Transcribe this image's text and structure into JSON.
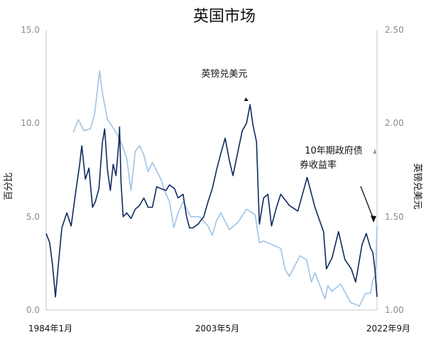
{
  "chart_data": {
    "type": "line",
    "title": "英国市场",
    "ylabel_left": "百分比",
    "ylabel_right": "英镑兑美元",
    "x_ticks": [
      "1984年1月",
      "2003年5月",
      "2022年9月"
    ],
    "x_range": [
      "1984-01",
      "2022-09"
    ],
    "y_left": {
      "range": [
        0,
        15
      ],
      "ticks": [
        "0.0",
        "5.0",
        "10.0",
        "15.0"
      ]
    },
    "y_right": {
      "range": [
        1.0,
        2.5
      ],
      "ticks": [
        "1.00",
        "1.50",
        "2.00",
        "2.50"
      ]
    },
    "annotations": [
      {
        "text": "英镑兑美元",
        "target_series": "gbpusd"
      },
      {
        "text": "10年期政府债",
        "target_series": "yield10y"
      },
      {
        "text": "券收益率",
        "target_series": "yield10y"
      }
    ],
    "series": [
      {
        "id": "gbpusd",
        "color": "#0d2a5e",
        "axis": "right",
        "points": [
          [
            "1984-01",
            1.41
          ],
          [
            "1984-06",
            1.36
          ],
          [
            "1984-10",
            1.24
          ],
          [
            "1985-02",
            1.07
          ],
          [
            "1985-06",
            1.24
          ],
          [
            "1985-11",
            1.44
          ],
          [
            "1986-06",
            1.52
          ],
          [
            "1986-12",
            1.45
          ],
          [
            "1987-06",
            1.62
          ],
          [
            "1987-12",
            1.78
          ],
          [
            "1988-03",
            1.88
          ],
          [
            "1988-08",
            1.7
          ],
          [
            "1989-01",
            1.76
          ],
          [
            "1989-06",
            1.55
          ],
          [
            "1989-10",
            1.58
          ],
          [
            "1990-03",
            1.65
          ],
          [
            "1990-08",
            1.9
          ],
          [
            "1990-11",
            1.97
          ],
          [
            "1991-03",
            1.75
          ],
          [
            "1991-07",
            1.64
          ],
          [
            "1991-11",
            1.78
          ],
          [
            "1992-03",
            1.72
          ],
          [
            "1992-07",
            1.9
          ],
          [
            "1992-08",
            1.98
          ],
          [
            "1992-10",
            1.68
          ],
          [
            "1993-01",
            1.5
          ],
          [
            "1993-06",
            1.52
          ],
          [
            "1993-12",
            1.49
          ],
          [
            "1994-06",
            1.54
          ],
          [
            "1994-12",
            1.56
          ],
          [
            "1995-06",
            1.6
          ],
          [
            "1995-12",
            1.55
          ],
          [
            "1996-06",
            1.55
          ],
          [
            "1996-12",
            1.66
          ],
          [
            "1997-06",
            1.65
          ],
          [
            "1998-01",
            1.64
          ],
          [
            "1998-06",
            1.67
          ],
          [
            "1999-01",
            1.65
          ],
          [
            "1999-06",
            1.6
          ],
          [
            "2000-01",
            1.62
          ],
          [
            "2000-06",
            1.5
          ],
          [
            "2000-10",
            1.44
          ],
          [
            "2001-03",
            1.44
          ],
          [
            "2001-10",
            1.46
          ],
          [
            "2002-06",
            1.5
          ],
          [
            "2002-12",
            1.58
          ],
          [
            "2003-06",
            1.65
          ],
          [
            "2003-12",
            1.75
          ],
          [
            "2004-06",
            1.84
          ],
          [
            "2004-12",
            1.92
          ],
          [
            "2005-06",
            1.8
          ],
          [
            "2005-11",
            1.72
          ],
          [
            "2006-06",
            1.85
          ],
          [
            "2006-12",
            1.96
          ],
          [
            "2007-06",
            2.0
          ],
          [
            "2007-11",
            2.1
          ],
          [
            "2008-03",
            1.99
          ],
          [
            "2008-08",
            1.9
          ],
          [
            "2008-12",
            1.46
          ],
          [
            "2009-06",
            1.6
          ],
          [
            "2009-12",
            1.62
          ],
          [
            "2010-05",
            1.45
          ],
          [
            "2010-12",
            1.55
          ],
          [
            "2011-06",
            1.62
          ],
          [
            "2012-06",
            1.56
          ],
          [
            "2013-06",
            1.53
          ],
          [
            "2014-07",
            1.71
          ],
          [
            "2015-06",
            1.55
          ],
          [
            "2016-06",
            1.42
          ],
          [
            "2016-10",
            1.22
          ],
          [
            "2017-06",
            1.28
          ],
          [
            "2018-03",
            1.42
          ],
          [
            "2018-12",
            1.27
          ],
          [
            "2019-09",
            1.22
          ],
          [
            "2020-03",
            1.15
          ],
          [
            "2020-12",
            1.35
          ],
          [
            "2021-06",
            1.41
          ],
          [
            "2021-12",
            1.33
          ],
          [
            "2022-03",
            1.31
          ],
          [
            "2022-06",
            1.22
          ],
          [
            "2022-09",
            1.07
          ]
        ]
      },
      {
        "id": "yield10y",
        "color": "#9ec3e6",
        "axis": "left",
        "points": [
          [
            "1987-03",
            9.5
          ],
          [
            "1987-10",
            10.2
          ],
          [
            "1988-06",
            9.6
          ],
          [
            "1989-03",
            9.7
          ],
          [
            "1989-09",
            10.5
          ],
          [
            "1990-04",
            12.8
          ],
          [
            "1990-08",
            11.6
          ],
          [
            "1991-03",
            10.2
          ],
          [
            "1991-12",
            9.7
          ],
          [
            "1992-06",
            9.3
          ],
          [
            "1992-12",
            8.8
          ],
          [
            "1993-06",
            8.1
          ],
          [
            "1993-12",
            6.4
          ],
          [
            "1994-06",
            8.5
          ],
          [
            "1994-12",
            8.8
          ],
          [
            "1995-06",
            8.3
          ],
          [
            "1995-12",
            7.4
          ],
          [
            "1996-06",
            7.9
          ],
          [
            "1997-06",
            7.0
          ],
          [
            "1997-12",
            6.3
          ],
          [
            "1998-06",
            5.8
          ],
          [
            "1998-12",
            4.4
          ],
          [
            "1999-06",
            5.2
          ],
          [
            "2000-01",
            5.8
          ],
          [
            "2000-12",
            5.0
          ],
          [
            "2001-12",
            5.0
          ],
          [
            "2002-12",
            4.5
          ],
          [
            "2003-06",
            4.0
          ],
          [
            "2003-12",
            4.8
          ],
          [
            "2004-06",
            5.2
          ],
          [
            "2005-06",
            4.3
          ],
          [
            "2006-06",
            4.7
          ],
          [
            "2007-06",
            5.4
          ],
          [
            "2008-06",
            5.1
          ],
          [
            "2008-12",
            3.6
          ],
          [
            "2009-06",
            3.7
          ],
          [
            "2010-06",
            3.5
          ],
          [
            "2011-06",
            3.3
          ],
          [
            "2011-12",
            2.2
          ],
          [
            "2012-06",
            1.8
          ],
          [
            "2013-09",
            2.9
          ],
          [
            "2014-06",
            2.7
          ],
          [
            "2015-01",
            1.5
          ],
          [
            "2015-06",
            2.0
          ],
          [
            "2016-08",
            0.6
          ],
          [
            "2016-12",
            1.3
          ],
          [
            "2017-06",
            1.0
          ],
          [
            "2018-06",
            1.4
          ],
          [
            "2019-08",
            0.4
          ],
          [
            "2020-03",
            0.3
          ],
          [
            "2020-08",
            0.2
          ],
          [
            "2021-05",
            0.9
          ],
          [
            "2021-12",
            0.9
          ],
          [
            "2022-03",
            1.6
          ],
          [
            "2022-07",
            1.9
          ],
          [
            "2022-09",
            4.5
          ]
        ]
      }
    ]
  }
}
